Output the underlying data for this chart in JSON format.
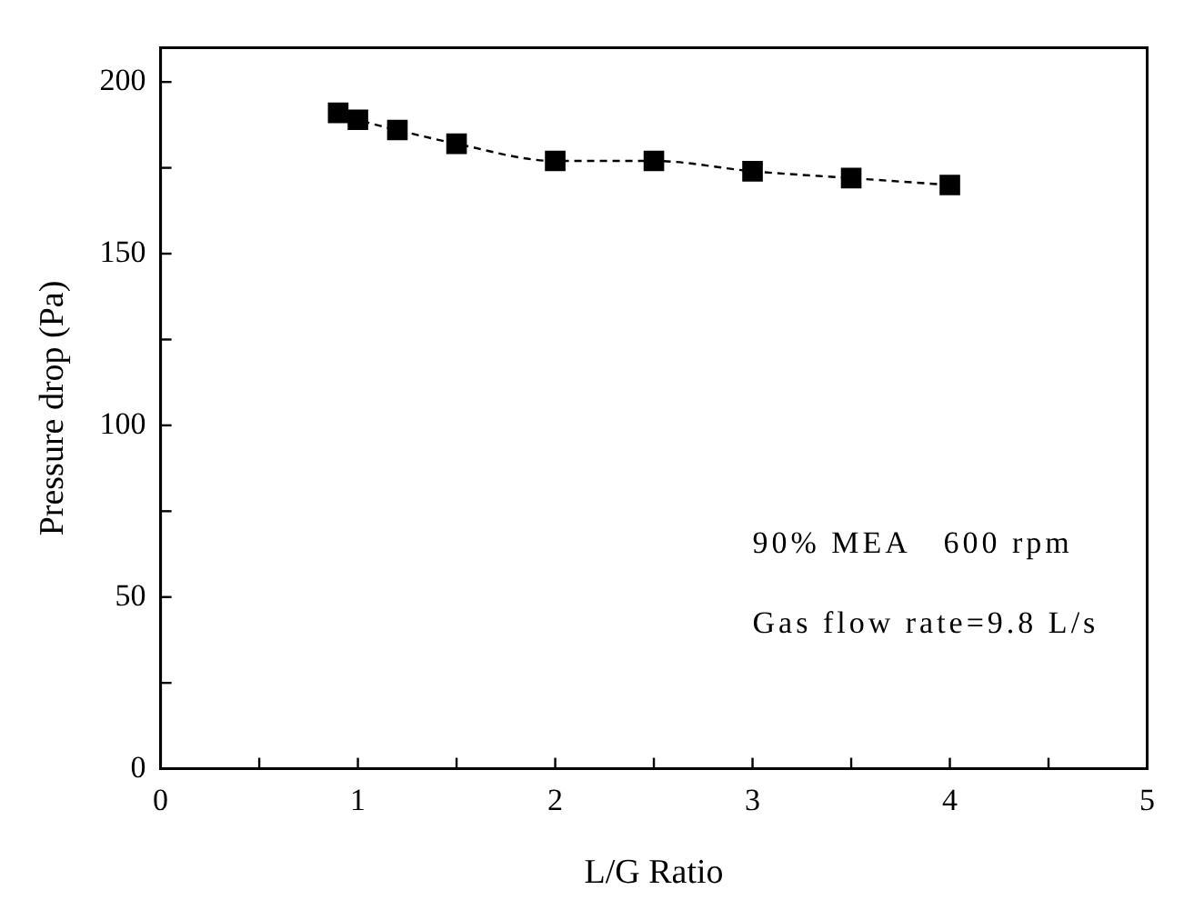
{
  "chart_data": {
    "type": "line",
    "xlabel": "L/G Ratio",
    "ylabel": "Pressure drop (Pa)",
    "x": [
      0.9,
      1,
      1.2,
      1.5,
      2,
      2.5,
      3,
      3.5,
      4
    ],
    "series": [
      {
        "color": "#000000",
        "values": [
          191,
          189,
          186,
          182,
          177,
          177,
          174,
          172,
          170
        ]
      }
    ],
    "xlim": [
      0,
      5
    ],
    "ylim": [
      0,
      210
    ],
    "xticks": [
      0,
      {
        "value": 0.5,
        "label": null
      },
      1,
      {
        "value": 1.5,
        "label": null
      },
      2,
      {
        "value": 2.5,
        "label": null
      },
      3,
      {
        "value": 3.5,
        "label": null
      },
      4,
      {
        "value": 4.5,
        "label": null
      },
      5
    ],
    "yticks": [
      0,
      {
        "value": 25,
        "label": null
      },
      50,
      {
        "value": 75,
        "label": null
      },
      100,
      {
        "value": 125,
        "label": null
      },
      150,
      {
        "value": 175,
        "label": null
      },
      200
    ],
    "annotations": [
      "90% MEA   600 rpm",
      "Gas flow rate=9.8 L/s"
    ],
    "grid": false,
    "legend": false,
    "marker": "square",
    "line_style": "dashed"
  }
}
